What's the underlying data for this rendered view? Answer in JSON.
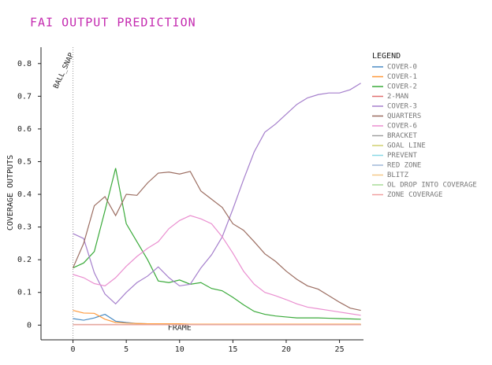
{
  "chart_data": {
    "type": "line",
    "title": "FAI OUTPUT PREDICTION",
    "x_label": "FRAME",
    "y_label": "COVERAGE OUTPUTS",
    "legend_title": "LEGEND",
    "legend": "right",
    "annotations": [
      {
        "text": "BALL_SNAP",
        "x": 0
      }
    ],
    "x": [
      0,
      1,
      2,
      3,
      4,
      5,
      6,
      7,
      8,
      9,
      10,
      11,
      12,
      13,
      14,
      15,
      16,
      17,
      18,
      19,
      20,
      21,
      22,
      23,
      24,
      25,
      26,
      27
    ],
    "xlim": [
      -3,
      27.25
    ],
    "xticks": [
      0,
      5,
      10,
      15,
      20,
      25
    ],
    "ylim": [
      -0.045,
      0.85
    ],
    "yticks": [
      {
        "value": 0,
        "label": "0"
      },
      0.1,
      0.2,
      0.3,
      0.4,
      0.5,
      0.6,
      0.7,
      0.8
    ],
    "series": [
      {
        "name": "COVER-0",
        "color": "#4a8cc4",
        "values": [
          0.02,
          0.015,
          0.022,
          0.033,
          0.012,
          0.008,
          0.005,
          0.004,
          0.004,
          0.004,
          0.003,
          0.003,
          0.003,
          0.003,
          0.003,
          0.003,
          0.002,
          0.002,
          0.002,
          0.002,
          0.002,
          0.002,
          0.002,
          0.002,
          0.002,
          0.002,
          0.002,
          0.002
        ]
      },
      {
        "name": "COVER-1",
        "color": "#ff9a3c",
        "values": [
          0.045,
          0.037,
          0.036,
          0.018,
          0.008,
          0.006,
          0.005,
          0.004,
          0.004,
          0.004,
          0.004,
          0.003,
          0.003,
          0.003,
          0.003,
          0.003,
          0.003,
          0.003,
          0.003,
          0.003,
          0.003,
          0.003,
          0.003,
          0.003,
          0.003,
          0.003,
          0.003,
          0.003
        ]
      },
      {
        "name": "COVER-2",
        "color": "#3aaa3a",
        "values": [
          0.175,
          0.19,
          0.225,
          0.35,
          0.48,
          0.31,
          0.255,
          0.2,
          0.135,
          0.13,
          0.138,
          0.125,
          0.13,
          0.112,
          0.105,
          0.085,
          0.062,
          0.042,
          0.033,
          0.028,
          0.025,
          0.022,
          0.022,
          0.022,
          0.021,
          0.02,
          0.019,
          0.018
        ]
      },
      {
        "name": "2-MAN",
        "color": "#e07070",
        "values": [
          0.002,
          0.002,
          0.002,
          0.002,
          0.002,
          0.001,
          0.001,
          0.001,
          0.001,
          0.001,
          0.001,
          0.001,
          0.001,
          0.001,
          0.001,
          0.001,
          0.001,
          0.001,
          0.001,
          0.001,
          0.001,
          0.001,
          0.001,
          0.001,
          0.001,
          0.001,
          0.001,
          0.001
        ]
      },
      {
        "name": "COVER-3",
        "color": "#a57fcc",
        "values": [
          0.28,
          0.265,
          0.16,
          0.095,
          0.065,
          0.1,
          0.13,
          0.15,
          0.178,
          0.145,
          0.12,
          0.125,
          0.175,
          0.215,
          0.27,
          0.355,
          0.445,
          0.53,
          0.59,
          0.615,
          0.645,
          0.675,
          0.695,
          0.705,
          0.71,
          0.71,
          0.72,
          0.74
        ]
      },
      {
        "name": "QUARTERS",
        "color": "#9c6e62",
        "values": [
          0.175,
          0.25,
          0.365,
          0.393,
          0.335,
          0.4,
          0.397,
          0.435,
          0.465,
          0.468,
          0.462,
          0.47,
          0.41,
          0.385,
          0.36,
          0.31,
          0.29,
          0.255,
          0.218,
          0.195,
          0.165,
          0.14,
          0.12,
          0.11,
          0.09,
          0.07,
          0.052,
          0.045
        ]
      },
      {
        "name": "COVER-6",
        "color": "#ea8fd0",
        "values": [
          0.155,
          0.145,
          0.127,
          0.12,
          0.145,
          0.18,
          0.21,
          0.235,
          0.255,
          0.295,
          0.32,
          0.335,
          0.325,
          0.31,
          0.27,
          0.22,
          0.165,
          0.125,
          0.1,
          0.09,
          0.078,
          0.065,
          0.055,
          0.05,
          0.045,
          0.04,
          0.035,
          0.03
        ]
      },
      {
        "name": "BRACKET",
        "color": "#a0a0a0",
        "values": [
          0.001,
          0.001,
          0.001,
          0.001,
          0.001,
          0.001,
          0.001,
          0.001,
          0.001,
          0.001,
          0.001,
          0.001,
          0.001,
          0.001,
          0.001,
          0.001,
          0.001,
          0.001,
          0.001,
          0.001,
          0.001,
          0.001,
          0.001,
          0.001,
          0.001,
          0.001,
          0.001,
          0.001
        ]
      },
      {
        "name": "GOAL LINE",
        "color": "#d0d070",
        "values": [
          0.001,
          0.001,
          0.001,
          0.001,
          0.001,
          0.001,
          0.001,
          0.001,
          0.001,
          0.001,
          0.001,
          0.001,
          0.001,
          0.001,
          0.001,
          0.001,
          0.001,
          0.001,
          0.001,
          0.001,
          0.001,
          0.001,
          0.001,
          0.001,
          0.001,
          0.001,
          0.001,
          0.001
        ]
      },
      {
        "name": "PREVENT",
        "color": "#8ad8e6",
        "values": [
          0.001,
          0.001,
          0.001,
          0.001,
          0.001,
          0.001,
          0.001,
          0.001,
          0.001,
          0.001,
          0.001,
          0.001,
          0.001,
          0.001,
          0.001,
          0.001,
          0.001,
          0.001,
          0.001,
          0.001,
          0.001,
          0.001,
          0.001,
          0.001,
          0.001,
          0.001,
          0.001,
          0.001
        ]
      },
      {
        "name": "RED ZONE",
        "color": "#9fb8d8",
        "values": [
          0.001,
          0.001,
          0.001,
          0.001,
          0.001,
          0.001,
          0.001,
          0.001,
          0.001,
          0.001,
          0.001,
          0.001,
          0.001,
          0.001,
          0.001,
          0.001,
          0.001,
          0.001,
          0.001,
          0.001,
          0.001,
          0.001,
          0.001,
          0.001,
          0.001,
          0.001,
          0.001,
          0.001
        ]
      },
      {
        "name": "BLITZ",
        "color": "#f5c88a",
        "values": [
          0.001,
          0.001,
          0.001,
          0.001,
          0.001,
          0.001,
          0.001,
          0.001,
          0.001,
          0.001,
          0.001,
          0.001,
          0.001,
          0.001,
          0.001,
          0.001,
          0.001,
          0.001,
          0.001,
          0.001,
          0.001,
          0.001,
          0.001,
          0.001,
          0.001,
          0.001,
          0.001,
          0.001
        ]
      },
      {
        "name": "OL DROP INTO COVERAGE",
        "color": "#a8dc98",
        "values": [
          0.001,
          0.001,
          0.001,
          0.001,
          0.001,
          0.001,
          0.001,
          0.001,
          0.001,
          0.001,
          0.001,
          0.001,
          0.001,
          0.001,
          0.001,
          0.001,
          0.001,
          0.001,
          0.001,
          0.001,
          0.001,
          0.001,
          0.001,
          0.001,
          0.001,
          0.001,
          0.001,
          0.001
        ]
      },
      {
        "name": "ZONE COVERAGE",
        "color": "#f0a0a0",
        "values": [
          0.001,
          0.001,
          0.001,
          0.001,
          0.001,
          0.001,
          0.001,
          0.001,
          0.001,
          0.001,
          0.001,
          0.001,
          0.001,
          0.001,
          0.001,
          0.001,
          0.001,
          0.001,
          0.001,
          0.001,
          0.001,
          0.001,
          0.001,
          0.001,
          0.001,
          0.001,
          0.001,
          0.001
        ]
      }
    ]
  }
}
